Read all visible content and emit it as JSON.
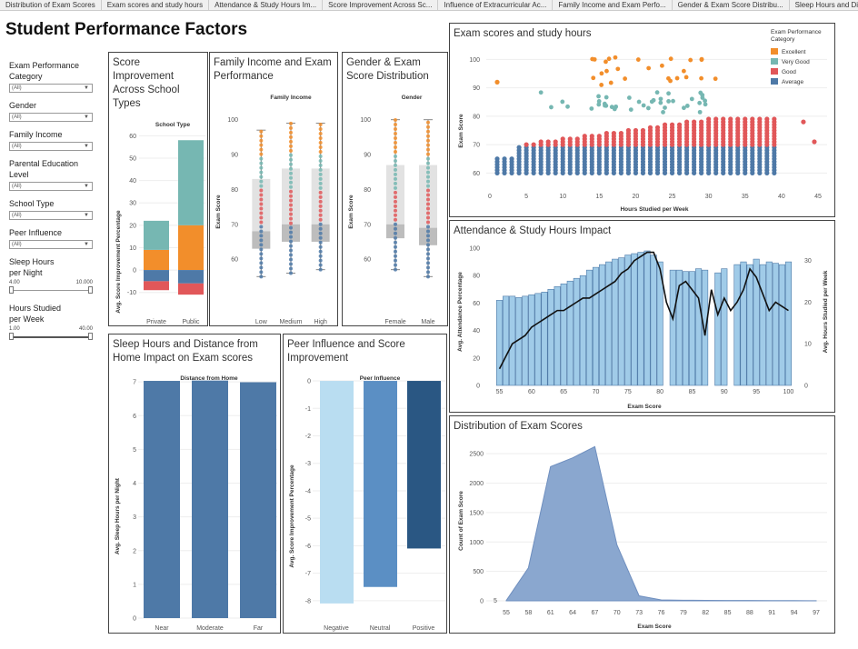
{
  "tabs": [
    "Distribution of Exam Scores",
    "Exam scores and study hours",
    "Attendance & Study Hours Im...",
    "Score Improvement Across Sc...",
    "Influence of Extracurricular Ac...",
    "Family Income and Exam Perfo...",
    "Gender & Exam Score Distribu...",
    "Sleep Hours and Distan"
  ],
  "page_title": "Student Performance Factors",
  "filters": {
    "exam_cat": {
      "label": "Exam Performance Category",
      "value": "(All)"
    },
    "gender": {
      "label": "Gender",
      "value": "(All)"
    },
    "income": {
      "label": "Family Income",
      "value": "(All)"
    },
    "parental": {
      "label": "Parental Education Level",
      "value": "(All)"
    },
    "school": {
      "label": "School Type",
      "value": "(All)"
    },
    "peer": {
      "label": "Peer Influence",
      "value": "(All)"
    },
    "sleep": {
      "label": "Sleep Hours per Night",
      "min": "4.00",
      "max": "10.000"
    },
    "study": {
      "label": "Hours Studied per Week",
      "min": "1.00",
      "max": "40.00"
    }
  },
  "colors": {
    "excellent": "#f28e2b",
    "very_good": "#76b7b2",
    "good": "#e15759",
    "average": "#4e79a7"
  },
  "chart_data": [
    {
      "id": "school",
      "type": "bar",
      "title": "Score Improvement Across School Types",
      "xlabel": "School Type",
      "ylabel": "Avg. Score Improvement Percentage",
      "categories": [
        "Private",
        "Public"
      ],
      "ylim": [
        -15,
        65
      ],
      "yticks": [
        -10,
        0,
        10,
        20,
        30,
        40,
        50,
        60
      ],
      "series": [
        {
          "name": "Excellent",
          "values": [
            9,
            20
          ]
        },
        {
          "name": "Very Good",
          "values": [
            13,
            38
          ]
        },
        {
          "name": "Average",
          "values": [
            -5,
            -6
          ]
        },
        {
          "name": "Good",
          "values": [
            -4,
            -5
          ]
        }
      ]
    },
    {
      "id": "income",
      "type": "scatter",
      "title": "Family Income and Exam Performance",
      "xlabel": "Family Income",
      "ylabel": "Exam Score",
      "categories": [
        "Low",
        "Medium",
        "High"
      ],
      "ylim": [
        53,
        102
      ],
      "yticks": [
        60,
        70,
        80,
        90,
        100
      ],
      "box": [
        [
          55,
          63,
          68,
          72,
          83,
          97
        ],
        [
          56,
          65,
          70,
          74,
          86,
          99
        ],
        [
          57,
          65,
          70,
          74,
          86,
          99
        ]
      ]
    },
    {
      "id": "gender",
      "type": "scatter",
      "title": "Gender & Exam Score Distribution",
      "xlabel": "Gender",
      "ylabel": "Exam Score",
      "categories": [
        "Female",
        "Male"
      ],
      "ylim": [
        53,
        102
      ],
      "yticks": [
        60,
        70,
        80,
        90,
        100
      ],
      "box": [
        [
          57,
          66,
          70,
          75,
          87,
          100
        ],
        [
          55,
          64,
          69,
          73,
          87,
          100
        ]
      ]
    },
    {
      "id": "study",
      "type": "scatter",
      "title": "Exam scores and study hours",
      "xlabel": "Hours Studied per Week",
      "ylabel": "Exam Score",
      "xlim": [
        0,
        46
      ],
      "ylim": [
        55,
        103
      ],
      "xticks": [
        0,
        5,
        10,
        15,
        20,
        25,
        30,
        35,
        40,
        45
      ],
      "yticks": [
        60,
        70,
        80,
        90,
        100
      ],
      "legend_title": "Exam Performance Category",
      "legend": [
        "Excellent",
        "Very Good",
        "Good",
        "Average"
      ],
      "legend_position": "top-right"
    },
    {
      "id": "attendance",
      "type": "bar",
      "title": "Attendance & Study Hours Impact",
      "xlabel": "Exam Score",
      "ylabel": "Avg. Attendance Percentage",
      "ylabel2": "Avg. Hours Studied per Week",
      "x": [
        55,
        56,
        57,
        58,
        59,
        60,
        61,
        62,
        63,
        64,
        65,
        66,
        67,
        68,
        69,
        70,
        71,
        72,
        73,
        74,
        75,
        76,
        77,
        78,
        79,
        80,
        81,
        82,
        83,
        84,
        85,
        86,
        87,
        88,
        89,
        90,
        91,
        92,
        93,
        94,
        95,
        96,
        97,
        98,
        99,
        100
      ],
      "bars": [
        62,
        65,
        65,
        64,
        65,
        66,
        67,
        68,
        70,
        72,
        74,
        76,
        78,
        80,
        84,
        86,
        88,
        90,
        92,
        93,
        95,
        96,
        97,
        98,
        95,
        90,
        0,
        84,
        84,
        83,
        83,
        85,
        84,
        0,
        82,
        85,
        0,
        88,
        90,
        88,
        92,
        88,
        90,
        89,
        88,
        90
      ],
      "line": [
        4,
        7,
        10,
        11,
        12,
        14,
        15,
        16,
        17,
        18,
        18,
        19,
        20,
        21,
        21,
        22,
        23,
        24,
        25,
        27,
        28,
        30,
        31,
        32,
        32,
        28,
        20,
        16,
        24,
        25,
        23,
        21,
        12,
        23,
        17,
        21,
        18,
        20,
        23,
        28,
        26,
        22,
        18,
        20,
        19,
        18
      ],
      "ylim": [
        0,
        100
      ],
      "y2lim": [
        0,
        33
      ],
      "xticks": [
        55,
        60,
        65,
        70,
        75,
        80,
        85,
        90,
        95,
        100
      ],
      "yticks": [
        0,
        20,
        40,
        60,
        80,
        100
      ],
      "y2ticks": [
        0,
        10,
        20,
        30
      ]
    },
    {
      "id": "sleep",
      "type": "bar",
      "title": "Sleep Hours and Distance from Home Impact on Exam scores",
      "xlabel": "Distance from Home",
      "ylabel": "Avg. Sleep Hours per Night",
      "categories": [
        "Near",
        "Moderate",
        "Far"
      ],
      "values": [
        7.03,
        7.04,
        6.99
      ],
      "ylim": [
        0,
        7.3
      ],
      "yticks": [
        0,
        1,
        2,
        3,
        4,
        5,
        6,
        7
      ]
    },
    {
      "id": "peer",
      "type": "bar",
      "title": "Peer Influence and Score Improvement",
      "xlabel": "Peer Influence",
      "ylabel": "Avg. Score Improvement Percentage",
      "categories": [
        "Negative",
        "Neutral",
        "Positive"
      ],
      "values": [
        -8.1,
        -7.5,
        -6.1
      ],
      "ylim": [
        -8.6,
        0.2
      ],
      "yticks": [
        0,
        -1,
        -2,
        -3,
        -4,
        -5,
        -6,
        -7,
        -8
      ]
    },
    {
      "id": "dist",
      "type": "area",
      "title": "Distribution of Exam Scores",
      "xlabel": "Exam Score",
      "ylabel": "Count of Exam Score",
      "x": [
        55,
        58,
        61,
        64,
        67,
        70,
        73,
        76,
        79,
        82,
        85,
        88,
        91,
        94,
        97
      ],
      "values": [
        5,
        560,
        2280,
        2430,
        2620,
        950,
        85,
        15,
        10,
        8,
        6,
        5,
        4,
        3,
        2
      ],
      "ylim": [
        0,
        2750
      ],
      "yticks": [
        0,
        500,
        1000,
        1500,
        2000,
        2500
      ],
      "first_label": "5"
    }
  ]
}
